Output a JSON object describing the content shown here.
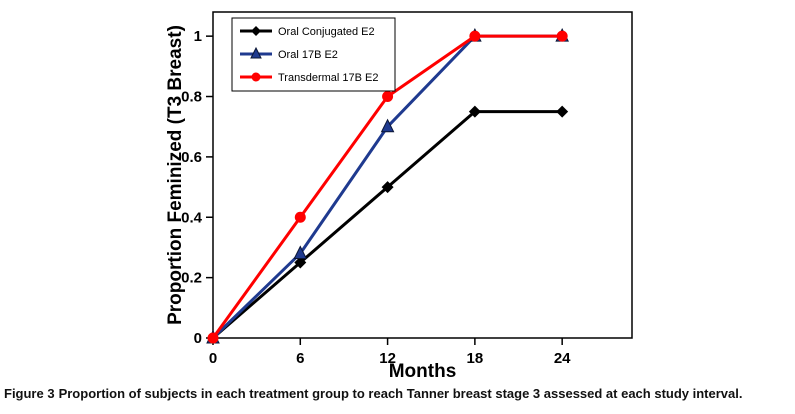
{
  "chart_data": {
    "type": "line",
    "x": [
      0,
      6,
      12,
      18,
      24
    ],
    "series": [
      {
        "name": "Oral Conjugated E2",
        "color": "#000000",
        "marker": "diamond",
        "values": [
          0,
          0.25,
          0.5,
          0.75,
          0.75
        ]
      },
      {
        "name": "Oral 17B E2",
        "color": "#1F3A8F",
        "marker": "triangle",
        "values": [
          0,
          0.28,
          0.7,
          1,
          1
        ]
      },
      {
        "name": "Transdermal 17B E2",
        "color": "#FF0000",
        "marker": "circle",
        "values": [
          0,
          0.4,
          0.8,
          1,
          1
        ]
      }
    ],
    "title": "",
    "xlabel": "Months",
    "ylabel": "Proportion Feminized (T3 Breast)",
    "xticks": [
      0,
      6,
      12,
      18,
      24
    ],
    "yticks": [
      0,
      0.2,
      0.4,
      0.6,
      0.8,
      1
    ],
    "xtick_labels": [
      "0",
      "6",
      "12",
      "18",
      "24"
    ],
    "ytick_labels": [
      "0",
      "0.2",
      "0.4",
      "0.6",
      "0.8",
      "1"
    ],
    "xlim": [
      0,
      28.8
    ],
    "ylim": [
      0,
      1.08
    ],
    "grid": false,
    "legend_position": "top-left"
  },
  "caption": {
    "label": "Figure 3",
    "text": "Proportion of subjects in each treatment group to reach Tanner breast stage 3 assessed at each study interval."
  }
}
